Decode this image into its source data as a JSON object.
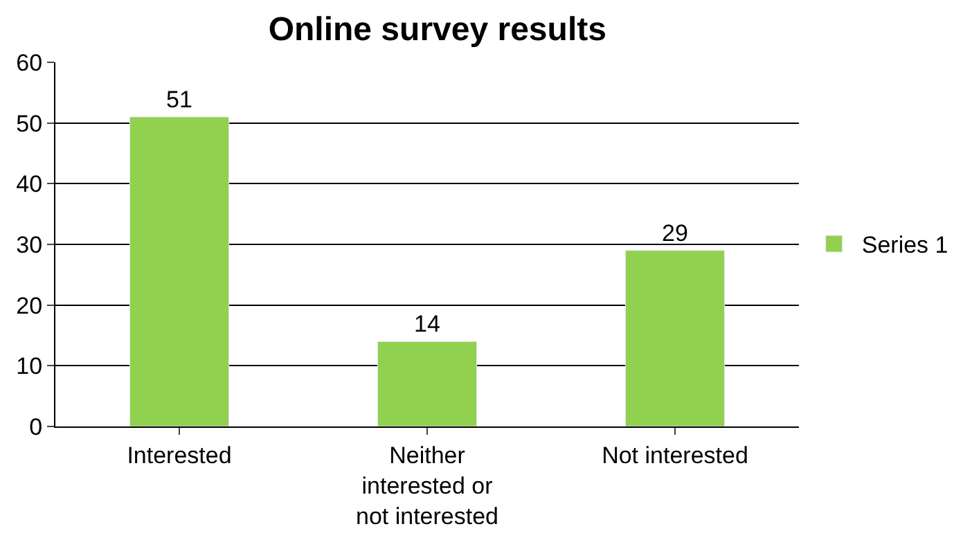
{
  "chart_data": {
    "type": "bar",
    "title": "Online survey results",
    "categories": [
      "Interested",
      "Neither interested or not interested",
      "Not interested"
    ],
    "series": [
      {
        "name": "Series 1",
        "color": "#92d050",
        "values": [
          51,
          14,
          29
        ]
      }
    ],
    "ylim": [
      0,
      60
    ],
    "yticks": [
      0,
      10,
      20,
      30,
      40,
      50,
      60
    ],
    "grid": "y",
    "legend": "right",
    "data_labels": true
  }
}
